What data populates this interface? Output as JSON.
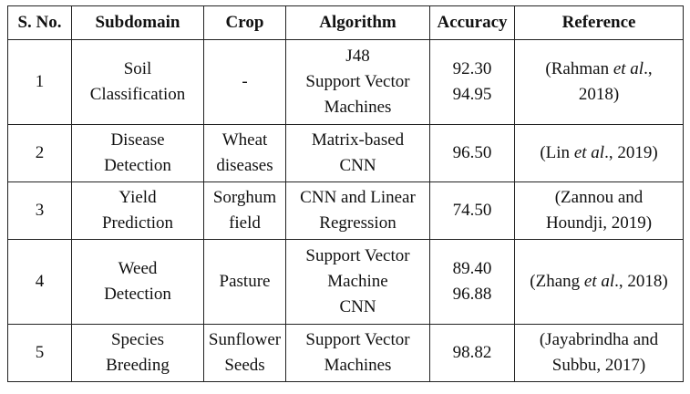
{
  "table": {
    "headers": [
      "S. No.",
      "Subdomain",
      "Crop",
      "Algorithm",
      "Accuracy",
      "Reference"
    ],
    "rows": [
      {
        "sno": "1",
        "subdomain": [
          "Soil",
          "Classification"
        ],
        "crop": [
          "-"
        ],
        "algorithm": [
          "J48",
          "Support Vector",
          "Machines"
        ],
        "accuracy": [
          "92.30",
          "94.95"
        ],
        "reference": [
          {
            "pre": "(Rahman ",
            "em": "et al",
            "post": ".,"
          },
          {
            "pre": "2018)",
            "em": "",
            "post": ""
          }
        ]
      },
      {
        "sno": "2",
        "subdomain": [
          "Disease",
          "Detection"
        ],
        "crop": [
          "Wheat",
          "diseases"
        ],
        "algorithm": [
          "Matrix-based",
          "CNN"
        ],
        "accuracy": [
          "96.50"
        ],
        "reference": [
          {
            "pre": "(Lin ",
            "em": "et al",
            "post": "., 2019)"
          }
        ]
      },
      {
        "sno": "3",
        "subdomain": [
          "Yield",
          "Prediction"
        ],
        "crop": [
          "Sorghum",
          "field"
        ],
        "algorithm": [
          "CNN and Linear",
          "Regression"
        ],
        "accuracy": [
          "74.50"
        ],
        "reference": [
          {
            "pre": "(Zannou and",
            "em": "",
            "post": ""
          },
          {
            "pre": "Houndji, 2019)",
            "em": "",
            "post": ""
          }
        ]
      },
      {
        "sno": "4",
        "subdomain": [
          "Weed",
          "Detection"
        ],
        "crop": [
          "Pasture"
        ],
        "algorithm": [
          "Support Vector",
          "Machine",
          "CNN"
        ],
        "accuracy": [
          "89.40",
          "96.88"
        ],
        "reference": [
          {
            "pre": "(Zhang ",
            "em": "et al",
            "post": "., 2018)"
          }
        ]
      },
      {
        "sno": "5",
        "subdomain": [
          "Species",
          "Breeding"
        ],
        "crop": [
          "Sunflower",
          "Seeds"
        ],
        "algorithm": [
          "Support Vector",
          "Machines"
        ],
        "accuracy": [
          "98.82"
        ],
        "reference": [
          {
            "pre": "(Jayabrindha and",
            "em": "",
            "post": ""
          },
          {
            "pre": "Subbu, 2017)",
            "em": "",
            "post": ""
          }
        ]
      }
    ]
  }
}
